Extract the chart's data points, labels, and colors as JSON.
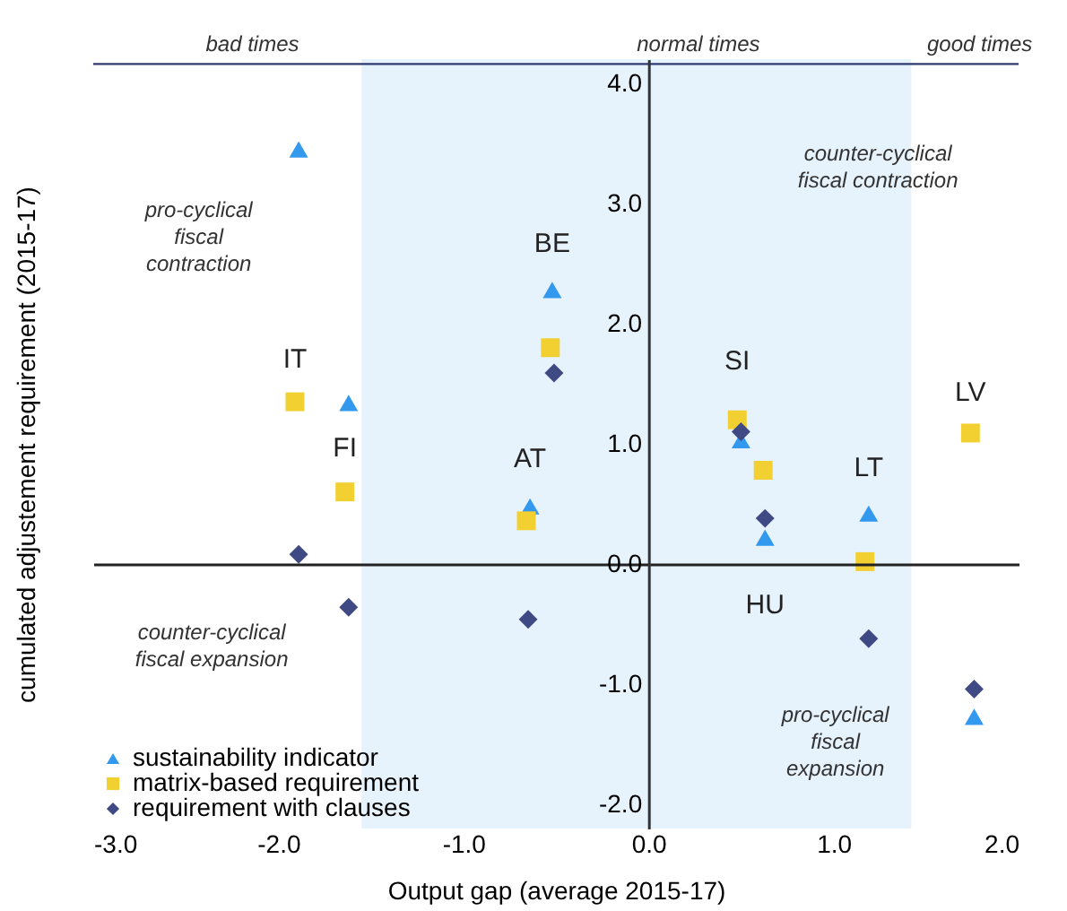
{
  "chart_data": {
    "type": "scatter",
    "xlabel": "Output gap (average 2015-17)",
    "ylabel": "cumulated adjustement requirement (2015-17)",
    "xlim": [
      -3,
      2
    ],
    "ylim": [
      -2.2,
      4.2
    ],
    "xticks": [
      {
        "value": -3,
        "label": "-3.0"
      },
      {
        "value": -2,
        "label": "-2.0"
      },
      {
        "value": -1,
        "label": "-1.0"
      },
      {
        "value": 0,
        "label": "0.0"
      },
      {
        "value": 1,
        "label": "1.0"
      },
      {
        "value": 2,
        "label": "2.0"
      }
    ],
    "yticks": [
      {
        "value": -2,
        "label": "-2.0"
      },
      {
        "value": -1,
        "label": "-1.0"
      },
      {
        "value": 0,
        "label": "0.0"
      },
      {
        "value": 1,
        "label": "1.0"
      },
      {
        "value": 2,
        "label": "2.0"
      },
      {
        "value": 3,
        "label": "3.0"
      },
      {
        "value": 4,
        "label": "4.0"
      }
    ],
    "legend": "bottom left",
    "series": [
      {
        "name": "sustainability indicator",
        "color": "#3399ee",
        "marker": "triangle",
        "x": [
          -1.89,
          -1.62,
          -0.52,
          -0.64,
          0.5,
          0.63,
          1.19,
          1.76
        ],
        "values": [
          3.45,
          1.34,
          2.28,
          0.48,
          1.03,
          0.22,
          0.42,
          -1.27
        ]
      },
      {
        "name": "matrix-based requirement",
        "color": "#f2d032",
        "marker": "square",
        "x": [
          -1.91,
          -1.64,
          -0.53,
          -0.66,
          0.48,
          0.62,
          1.17,
          1.74
        ],
        "values": [
          1.35,
          0.6,
          1.8,
          0.36,
          1.2,
          0.78,
          0.02,
          1.09
        ]
      },
      {
        "name": "requirement with clauses",
        "color": "#3f4a85",
        "marker": "diamond",
        "x": [
          -1.89,
          -1.62,
          -0.51,
          -0.65,
          0.5,
          0.63,
          1.19,
          1.76
        ],
        "values": [
          0.08,
          -0.36,
          1.59,
          -0.46,
          1.1,
          0.38,
          -0.62,
          -1.04
        ]
      }
    ],
    "bands": [
      {
        "axis": "x",
        "from": -1.55,
        "to": 1.42,
        "color": "#e6f2fc"
      }
    ],
    "ref_lines": [
      {
        "axis": "y",
        "value": 4.16,
        "color": "#2f3a73"
      }
    ],
    "annotations": [
      "bad times",
      "normal  times",
      "good times",
      "pro-cyclical\nfiscal\ncontraction",
      "counter-cyclical\nfiscal expansion",
      "counter-cyclical\nfiscal contraction",
      "pro-cyclical\nfiscal\nexpansion",
      {
        "text": "IT",
        "x": -1.91,
        "y": 1.35
      },
      {
        "text": "FI",
        "x": -1.64,
        "y": 0.6
      },
      {
        "text": "BE",
        "x": -0.52,
        "y": 2.28
      },
      {
        "text": "AT",
        "x": -0.64,
        "y": 0.48
      },
      {
        "text": "SI",
        "x": 0.48,
        "y": 1.2
      },
      {
        "text": "HU",
        "x": 0.63,
        "y": 0.22
      },
      {
        "text": "LT",
        "x": 1.19,
        "y": 0.42
      },
      {
        "text": "LV",
        "x": 1.74,
        "y": 1.09
      }
    ]
  }
}
